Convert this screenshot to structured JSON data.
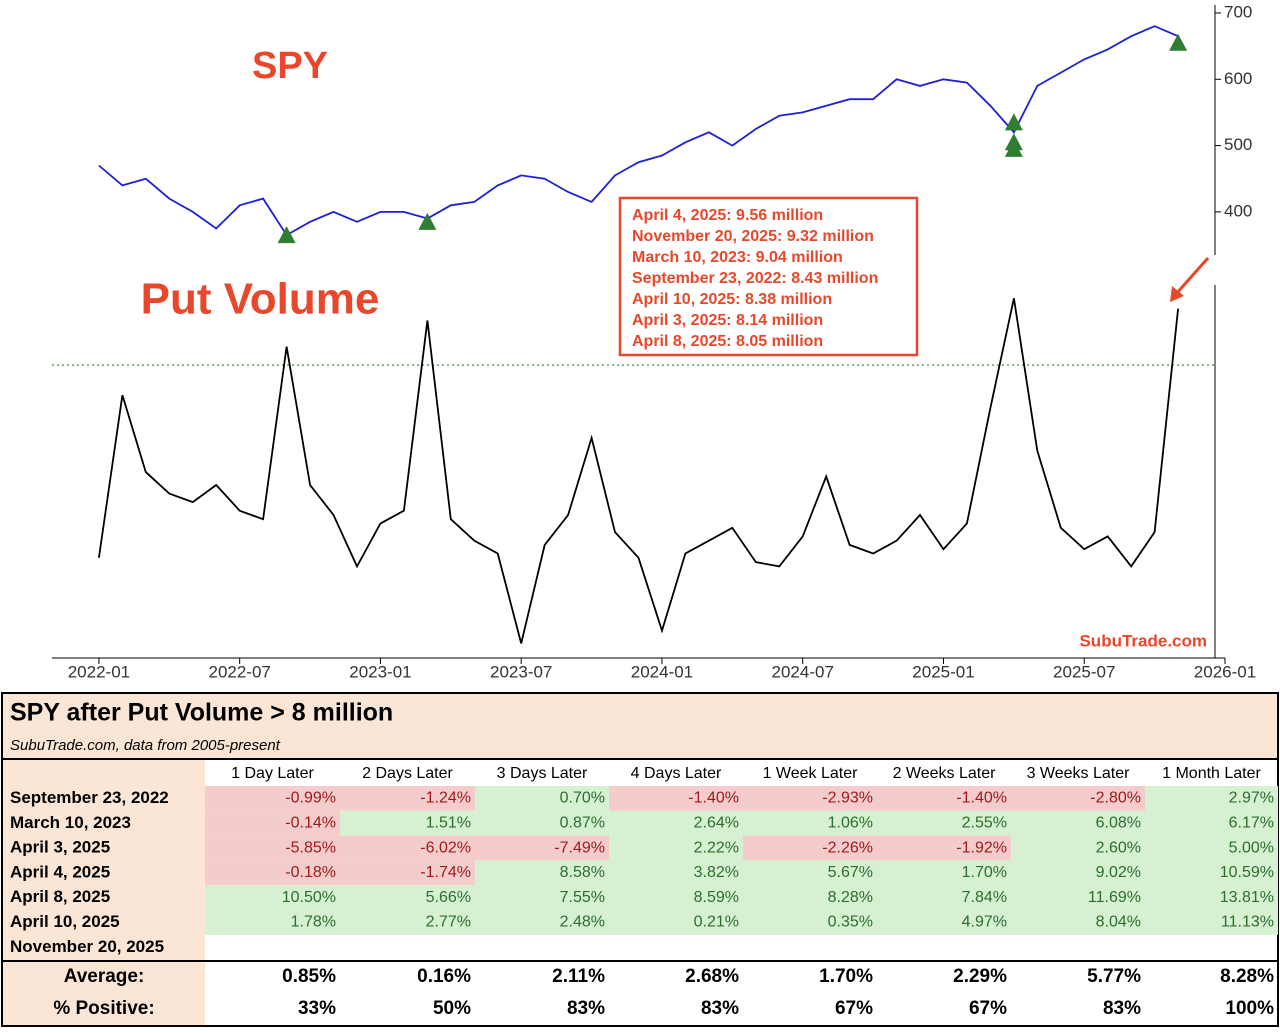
{
  "chart_data": [
    {
      "type": "line",
      "title": "SPY",
      "x_axis_kind": "month",
      "x": [
        "2022-01",
        "2022-02",
        "2022-03",
        "2022-04",
        "2022-05",
        "2022-06",
        "2022-07",
        "2022-08",
        "2022-09",
        "2022-10",
        "2022-11",
        "2022-12",
        "2023-01",
        "2023-02",
        "2023-03",
        "2023-04",
        "2023-05",
        "2023-06",
        "2023-07",
        "2023-08",
        "2023-09",
        "2023-10",
        "2023-11",
        "2023-12",
        "2024-01",
        "2024-02",
        "2024-03",
        "2024-04",
        "2024-05",
        "2024-06",
        "2024-07",
        "2024-08",
        "2024-09",
        "2024-10",
        "2024-11",
        "2024-12",
        "2025-01",
        "2025-02",
        "2025-03",
        "2025-04",
        "2025-05",
        "2025-06",
        "2025-07",
        "2025-08",
        "2025-09",
        "2025-10",
        "2025-11"
      ],
      "series": [
        {
          "name": "SPY",
          "color": "#1f1fd6",
          "values": [
            470,
            440,
            450,
            420,
            400,
            375,
            410,
            420,
            365,
            385,
            400,
            385,
            400,
            400,
            390,
            410,
            415,
            440,
            455,
            450,
            430,
            415,
            455,
            475,
            485,
            505,
            520,
            500,
            525,
            545,
            550,
            560,
            570,
            570,
            600,
            590,
            600,
            595,
            560,
            520,
            590,
            610,
            630,
            645,
            665,
            680,
            665
          ]
        }
      ],
      "markers": {
        "color": "#2e7d32",
        "x": [
          "2022-09",
          "2023-03",
          "2025-04",
          "2025-04",
          "2025-04",
          "2025-11"
        ],
        "values": [
          365,
          385,
          535,
          505,
          495,
          655
        ]
      },
      "xlim": [
        "2021-11",
        "2026-01"
      ],
      "ylim": [
        335,
        712
      ],
      "yticks": [
        400,
        500,
        600,
        700
      ]
    },
    {
      "type": "line",
      "title": "Put Volume",
      "x_axis_kind": "month",
      "x": [
        "2022-01",
        "2022-02",
        "2022-03",
        "2022-04",
        "2022-05",
        "2022-06",
        "2022-07",
        "2022-08",
        "2022-09",
        "2022-10",
        "2022-11",
        "2022-12",
        "2023-01",
        "2023-02",
        "2023-03",
        "2023-04",
        "2023-05",
        "2023-06",
        "2023-07",
        "2023-08",
        "2023-09",
        "2023-10",
        "2023-11",
        "2023-12",
        "2024-01",
        "2024-02",
        "2024-03",
        "2024-04",
        "2024-05",
        "2024-06",
        "2024-07",
        "2024-08",
        "2024-09",
        "2024-10",
        "2024-11",
        "2024-12",
        "2025-01",
        "2025-02",
        "2025-03",
        "2025-04",
        "2025-05",
        "2025-06",
        "2025-07",
        "2025-08",
        "2025-09",
        "2025-10",
        "2025-11"
      ],
      "series": [
        {
          "name": "Put Volume",
          "color": "#000000",
          "values": [
            3.5,
            7.3,
            5.5,
            5.0,
            4.8,
            5.2,
            4.6,
            4.4,
            8.43,
            5.2,
            4.5,
            3.3,
            4.3,
            4.6,
            9.04,
            4.4,
            3.9,
            3.6,
            1.5,
            3.8,
            4.5,
            6.3,
            4.1,
            3.5,
            1.8,
            3.6,
            3.9,
            4.2,
            3.4,
            3.3,
            4.0,
            5.4,
            3.8,
            3.6,
            3.9,
            4.5,
            3.7,
            4.3,
            7.0,
            9.56,
            6.0,
            4.2,
            3.7,
            4.0,
            3.3,
            4.1,
            9.32
          ]
        }
      ],
      "threshold_line": 8,
      "xlim": [
        "2021-11",
        "2026-01"
      ],
      "xticks": [
        "2022-01",
        "2022-07",
        "2023-01",
        "2023-07",
        "2024-01",
        "2024-07",
        "2025-01",
        "2025-07",
        "2026-01"
      ],
      "ylim": [
        1.16,
        9.87
      ],
      "annotations": [
        "April 4, 2025: 9.56 million",
        "November 20, 2025: 9.32 million",
        "March 10, 2023: 9.04 million",
        "September 23, 2022: 8.43 million",
        "April 10, 2025: 8.38 million",
        "April 3, 2025: 8.14 million",
        "April 8, 2025: 8.05 million"
      ],
      "watermark": "SubuTrade.com"
    }
  ],
  "table": {
    "title": "SPY after Put Volume > 8 million",
    "subtitle": "SubuTrade.com, data from 2005-present",
    "columns": [
      "1 Day Later",
      "2 Days Later",
      "3 Days Later",
      "4 Days Later",
      "1 Week Later",
      "2 Weeks Later",
      "3 Weeks Later",
      "1 Month Later"
    ],
    "rows": [
      {
        "label": "September 23, 2022",
        "cells": [
          "-0.99%",
          "-1.24%",
          "0.70%",
          "-1.40%",
          "-2.93%",
          "-1.40%",
          "-2.80%",
          "2.97%"
        ]
      },
      {
        "label": "March 10, 2023",
        "cells": [
          "-0.14%",
          "1.51%",
          "0.87%",
          "2.64%",
          "1.06%",
          "2.55%",
          "6.08%",
          "6.17%"
        ]
      },
      {
        "label": "April 3, 2025",
        "cells": [
          "-5.85%",
          "-6.02%",
          "-7.49%",
          "2.22%",
          "-2.26%",
          "-1.92%",
          "2.60%",
          "5.00%"
        ]
      },
      {
        "label": "April 4, 2025",
        "cells": [
          "-0.18%",
          "-1.74%",
          "8.58%",
          "3.82%",
          "5.67%",
          "1.70%",
          "9.02%",
          "10.59%"
        ]
      },
      {
        "label": "April 8, 2025",
        "cells": [
          "10.50%",
          "5.66%",
          "7.55%",
          "8.59%",
          "8.28%",
          "7.84%",
          "11.69%",
          "13.81%"
        ]
      },
      {
        "label": "April 10, 2025",
        "cells": [
          "1.78%",
          "2.77%",
          "2.48%",
          "0.21%",
          "0.35%",
          "4.97%",
          "8.04%",
          "11.13%"
        ]
      },
      {
        "label": "November 20, 2025",
        "cells": []
      }
    ],
    "summary": [
      {
        "label": "Average:",
        "cells": [
          "0.85%",
          "0.16%",
          "2.11%",
          "2.68%",
          "1.70%",
          "2.29%",
          "5.77%",
          "8.28%"
        ]
      },
      {
        "label": "% Positive:",
        "cells": [
          "33%",
          "50%",
          "83%",
          "83%",
          "67%",
          "67%",
          "83%",
          "100%"
        ]
      }
    ]
  }
}
